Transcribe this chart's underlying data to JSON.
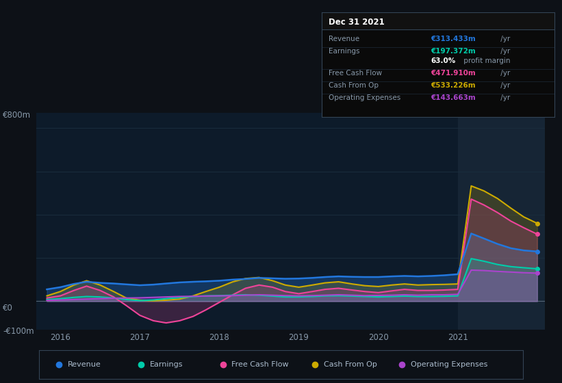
{
  "bg_color": "#0d1117",
  "plot_bg_color": "#0d1b2a",
  "title": "Dec 31 2021",
  "ylabel_top": "€800m",
  "ylabel_zero": "€0",
  "ylabel_neg": "-€100m",
  "x_min": 2015.7,
  "x_max": 2022.1,
  "y_min": -130,
  "y_max": 870,
  "highlight_x_start": 2021.0,
  "colors": {
    "revenue": "#2277dd",
    "earnings": "#00ccaa",
    "free_cash_flow": "#ee4499",
    "cash_from_op": "#ccaa00",
    "operating_expenses": "#aa44cc"
  },
  "tooltip": {
    "date": "Dec 31 2021",
    "revenue_val": "€313.433m",
    "earnings_val": "€197.372m",
    "profit_margin": "63.0%",
    "fcf_val": "€471.910m",
    "cfo_val": "€533.226m",
    "opex_val": "€143.663m"
  },
  "legend": [
    {
      "label": "Revenue",
      "color": "#2277dd"
    },
    {
      "label": "Earnings",
      "color": "#00ccaa"
    },
    {
      "label": "Free Cash Flow",
      "color": "#ee4499"
    },
    {
      "label": "Cash From Op",
      "color": "#ccaa00"
    },
    {
      "label": "Operating Expenses",
      "color": "#aa44cc"
    }
  ],
  "series": {
    "x": [
      2015.83,
      2016.0,
      2016.17,
      2016.33,
      2016.5,
      2016.67,
      2016.83,
      2017.0,
      2017.17,
      2017.33,
      2017.5,
      2017.67,
      2017.83,
      2018.0,
      2018.17,
      2018.33,
      2018.5,
      2018.67,
      2018.83,
      2019.0,
      2019.17,
      2019.33,
      2019.5,
      2019.67,
      2019.83,
      2020.0,
      2020.17,
      2020.33,
      2020.5,
      2020.67,
      2020.83,
      2021.0,
      2021.17,
      2021.33,
      2021.5,
      2021.67,
      2021.83,
      2022.0
    ],
    "revenue": [
      55,
      65,
      80,
      90,
      85,
      82,
      78,
      74,
      77,
      82,
      87,
      90,
      92,
      95,
      100,
      103,
      108,
      106,
      104,
      105,
      108,
      112,
      115,
      113,
      112,
      112,
      115,
      117,
      115,
      117,
      120,
      125,
      313,
      290,
      265,
      245,
      235,
      230
    ],
    "earnings": [
      8,
      12,
      18,
      22,
      20,
      15,
      8,
      3,
      6,
      12,
      17,
      22,
      25,
      26,
      28,
      30,
      28,
      24,
      20,
      20,
      22,
      25,
      26,
      24,
      22,
      20,
      22,
      24,
      22,
      22,
      23,
      25,
      197,
      185,
      170,
      160,
      155,
      150
    ],
    "free_cash_flow": [
      15,
      25,
      50,
      70,
      50,
      20,
      -20,
      -65,
      -90,
      -100,
      -90,
      -70,
      -40,
      -5,
      30,
      60,
      75,
      65,
      45,
      35,
      45,
      55,
      60,
      52,
      45,
      40,
      48,
      55,
      50,
      50,
      52,
      55,
      472,
      445,
      410,
      370,
      340,
      310
    ],
    "cash_from_op": [
      25,
      45,
      75,
      95,
      75,
      45,
      15,
      5,
      2,
      5,
      10,
      25,
      45,
      65,
      90,
      105,
      110,
      95,
      75,
      65,
      75,
      85,
      90,
      80,
      72,
      68,
      75,
      80,
      75,
      77,
      78,
      80,
      533,
      510,
      475,
      430,
      390,
      360
    ],
    "operating_expenses": [
      4,
      6,
      8,
      10,
      12,
      14,
      15,
      16,
      18,
      20,
      22,
      23,
      24,
      25,
      26,
      28,
      30,
      28,
      26,
      25,
      26,
      28,
      30,
      28,
      26,
      27,
      28,
      30,
      28,
      30,
      30,
      32,
      144,
      142,
      138,
      135,
      132,
      130
    ]
  }
}
